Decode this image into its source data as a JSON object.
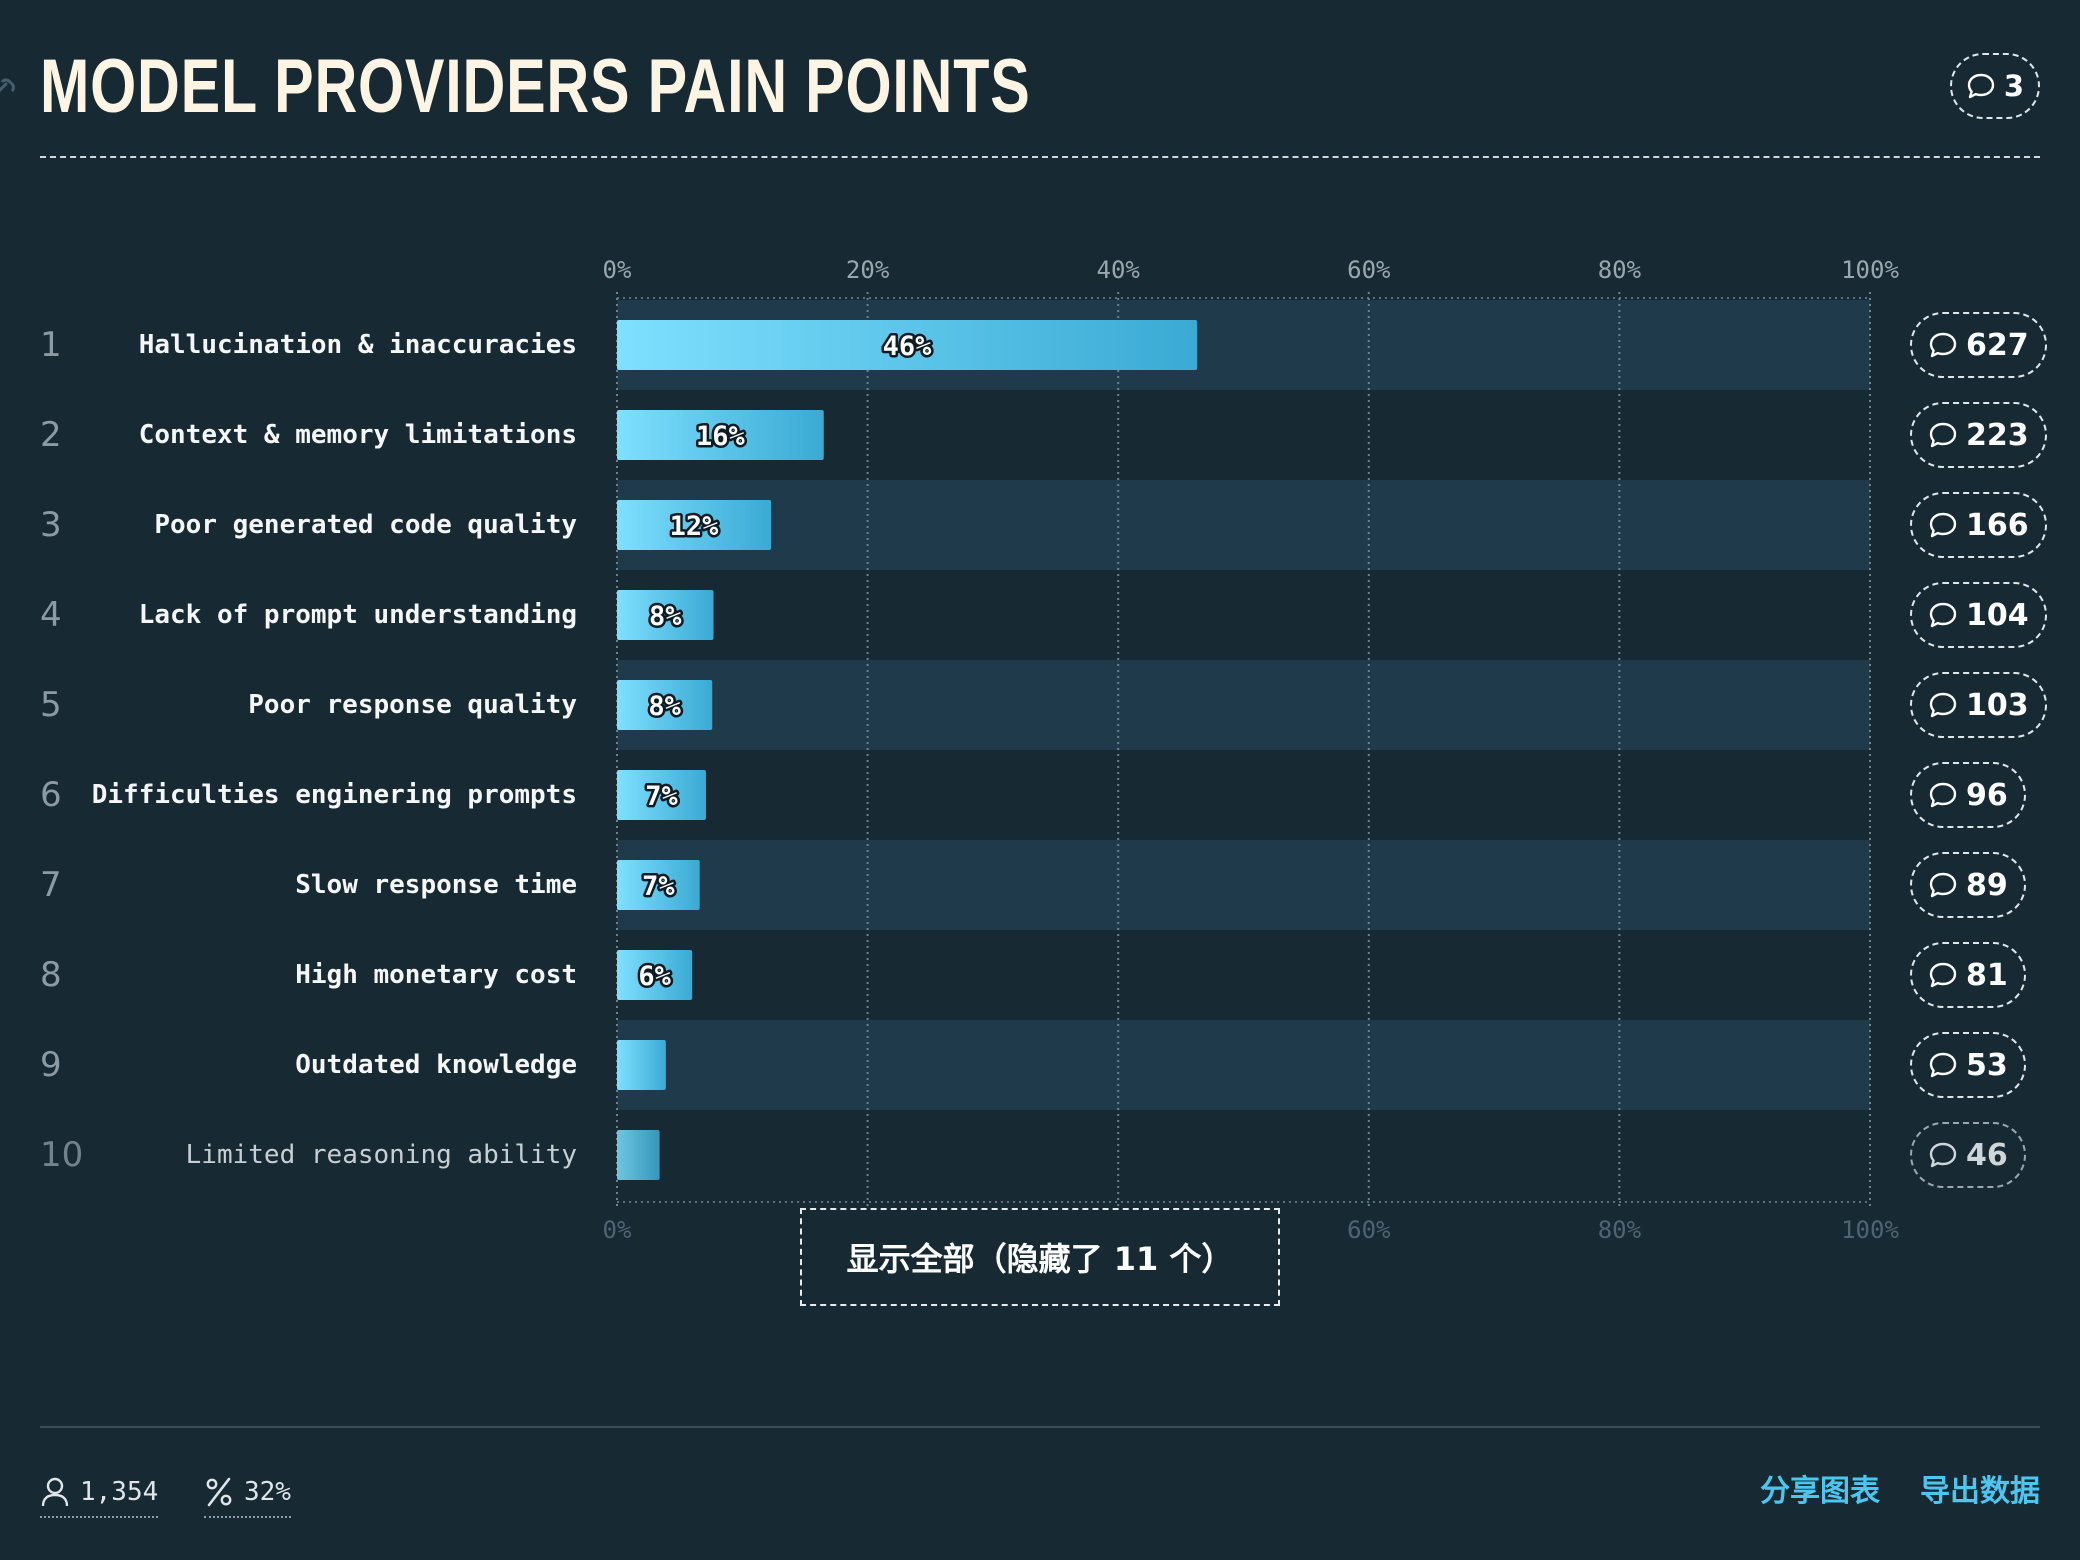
{
  "header": {
    "title": "MODEL PROVIDERS PAIN POINTS",
    "comment_count": "3"
  },
  "colors": {
    "background": "#172a34",
    "band": "#1f3a4a",
    "bar_light": "#7fe0ff",
    "bar_dark": "#3aaad4",
    "accent_link": "#4cc6f0"
  },
  "chart_data": {
    "type": "bar",
    "orientation": "horizontal",
    "x_ticks": [
      "0%",
      "20%",
      "40%",
      "60%",
      "80%",
      "100%"
    ],
    "xlim": [
      0,
      100
    ],
    "grid": true,
    "categories": [
      "Hallucination & inaccuracies",
      "Context & memory limitations",
      "Poor generated code quality",
      "Lack of prompt understanding",
      "Poor response quality",
      "Difficulties enginering prompts",
      "Slow response time",
      "High monetary cost",
      "Outdated knowledge",
      "Limited reasoning ability"
    ],
    "values": [
      46.3,
      16.5,
      12.3,
      7.7,
      7.6,
      7.1,
      6.6,
      6.0,
      3.9,
      3.4
    ],
    "value_labels": [
      "46%",
      "16%",
      "12%",
      "8%",
      "8%",
      "7%",
      "7%",
      "6%",
      "",
      ""
    ],
    "ranks": [
      "1",
      "2",
      "3",
      "4",
      "5",
      "6",
      "7",
      "8",
      "9",
      "10"
    ],
    "comment_counts": [
      "627",
      "223",
      "166",
      "104",
      "103",
      "96",
      "89",
      "81",
      "53",
      "46"
    ]
  },
  "show_all_label": "显示全部（隐藏了 11 个）",
  "footer": {
    "respondents": "1,354",
    "percent": "32%",
    "share_label": "分享图表",
    "export_label": "导出数据"
  },
  "icons": {
    "link": "link-icon",
    "comment": "comment-icon",
    "user": "user-icon",
    "percent": "percent-icon"
  }
}
